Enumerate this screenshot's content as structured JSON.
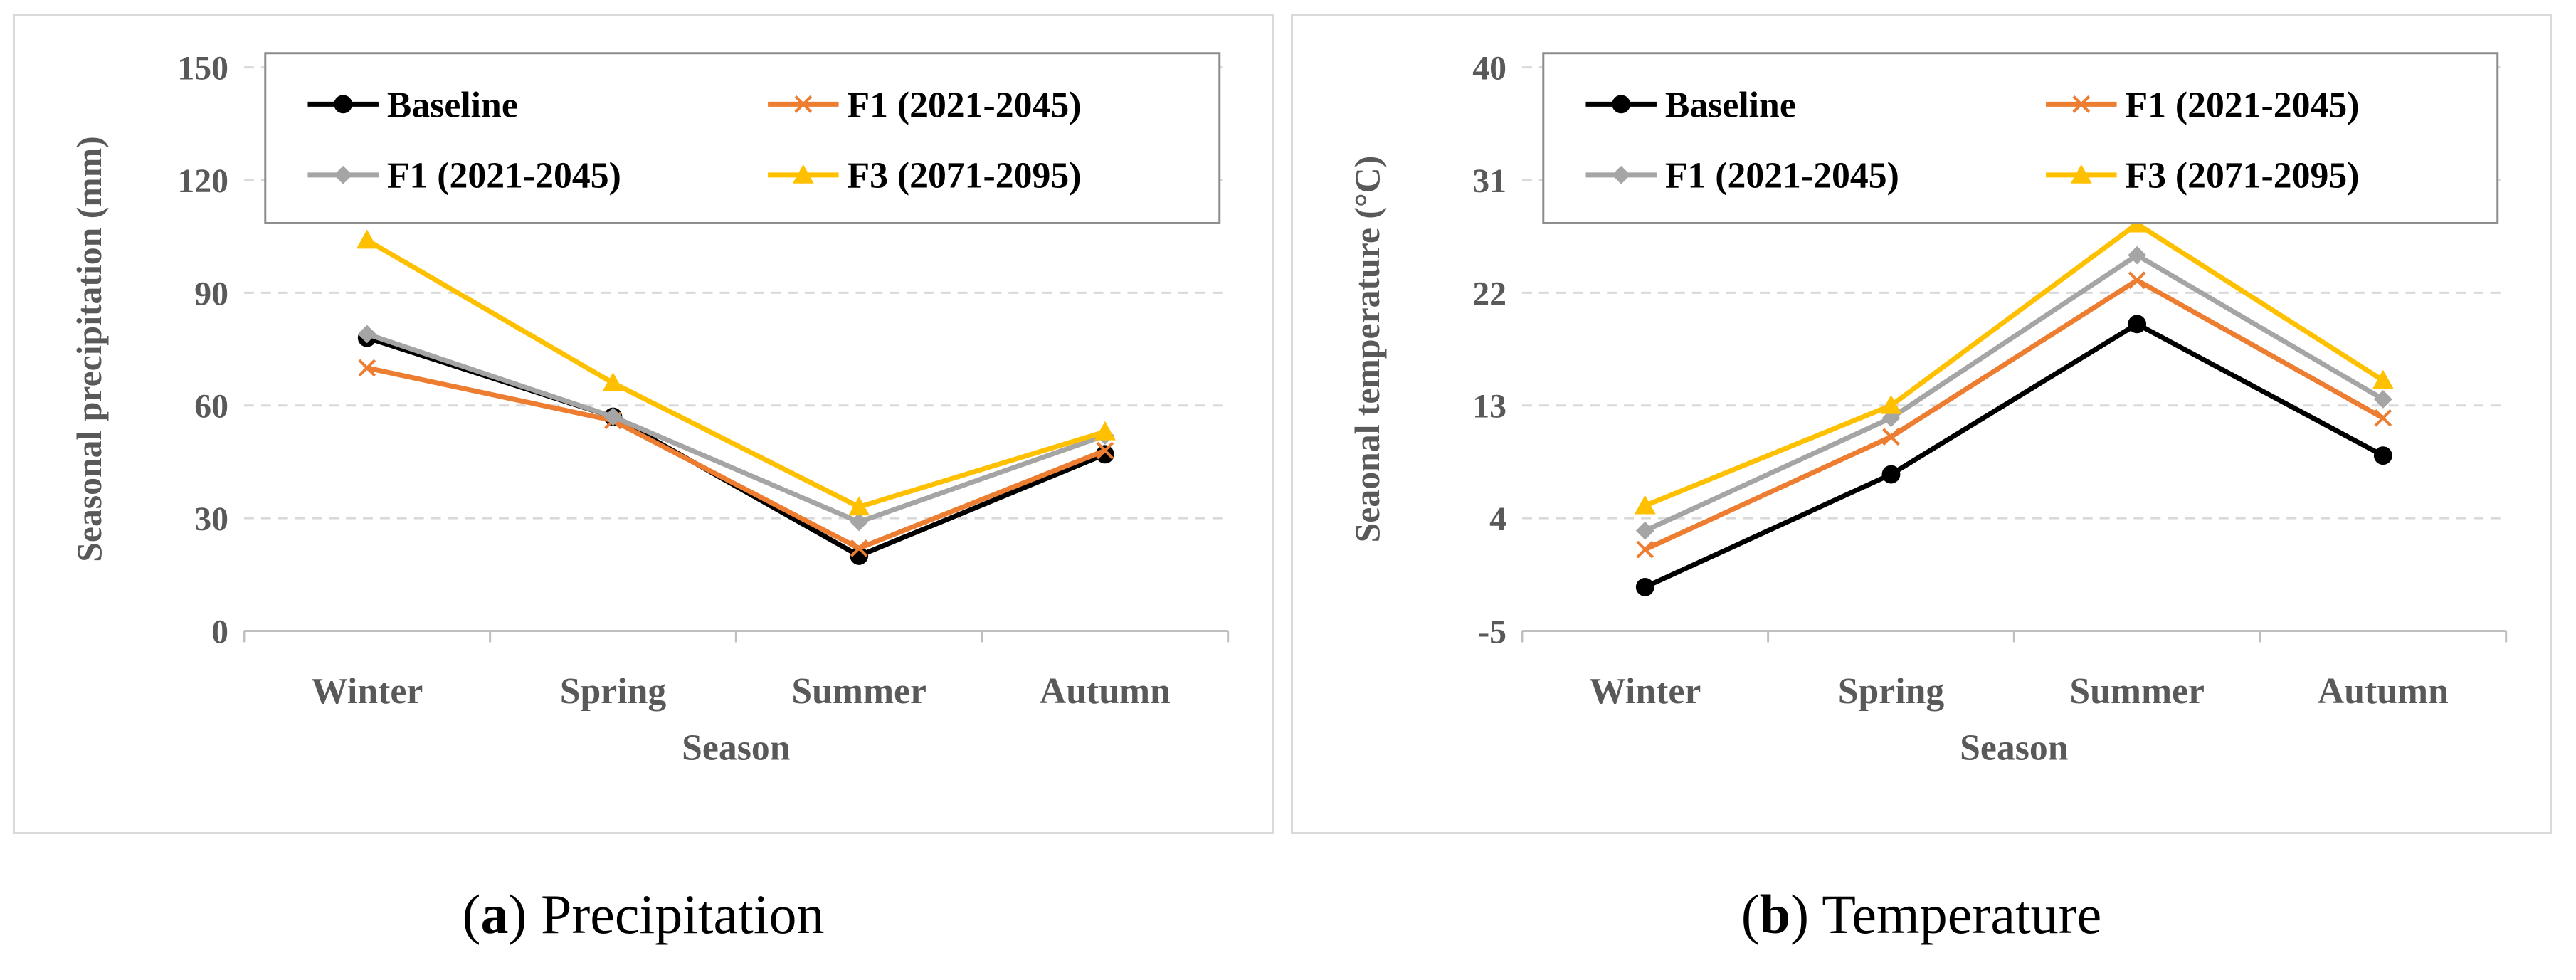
{
  "chart_data": [
    {
      "type": "line",
      "title": "",
      "xlabel": "Season",
      "ylabel": "Seasonal precipitation (mm)",
      "categories": [
        "Winter",
        "Spring",
        "Summer",
        "Autumn"
      ],
      "ylim": [
        0,
        150
      ],
      "yticks": [
        0,
        30,
        60,
        90,
        120,
        150
      ],
      "grid": true,
      "legend_position": "top",
      "series": [
        {
          "name": "Baseline",
          "values": [
            78,
            57,
            20,
            47
          ],
          "color": "#000000",
          "marker": "circle"
        },
        {
          "name": "F1 (2021-2045)",
          "values": [
            70,
            56,
            22,
            48
          ],
          "color": "#ed7d31",
          "marker": "x"
        },
        {
          "name": "F1 (2021-2045)",
          "values": [
            79,
            57,
            29,
            52
          ],
          "color": "#a5a5a5",
          "marker": "diamond"
        },
        {
          "name": "F3 (2071-2095)",
          "values": [
            104,
            66,
            33,
            53
          ],
          "color": "#ffc000",
          "marker": "triangle"
        }
      ]
    },
    {
      "type": "line",
      "title": "",
      "xlabel": "Season",
      "ylabel": "Seaonal temperature (°C)",
      "categories": [
        "Winter",
        "Spring",
        "Summer",
        "Autumn"
      ],
      "ylim": [
        -5,
        40
      ],
      "yticks": [
        -5,
        4,
        13,
        22,
        31,
        40
      ],
      "grid": true,
      "legend_position": "top",
      "series": [
        {
          "name": "Baseline",
          "values": [
            -1.5,
            7.5,
            19.5,
            9
          ],
          "color": "#000000",
          "marker": "circle"
        },
        {
          "name": "F1 (2021-2045)",
          "values": [
            1.5,
            10.5,
            23,
            12
          ],
          "color": "#ed7d31",
          "marker": "x"
        },
        {
          "name": "F1 (2021-2045)",
          "values": [
            3,
            12,
            25,
            13.5
          ],
          "color": "#a5a5a5",
          "marker": "diamond"
        },
        {
          "name": "F3 (2071-2095)",
          "values": [
            5,
            13,
            27.5,
            15
          ],
          "color": "#ffc000",
          "marker": "triangle"
        }
      ]
    }
  ],
  "captions": [
    {
      "letter": "a",
      "text": "Precipitation"
    },
    {
      "letter": "b",
      "text": "Temperature"
    }
  ]
}
